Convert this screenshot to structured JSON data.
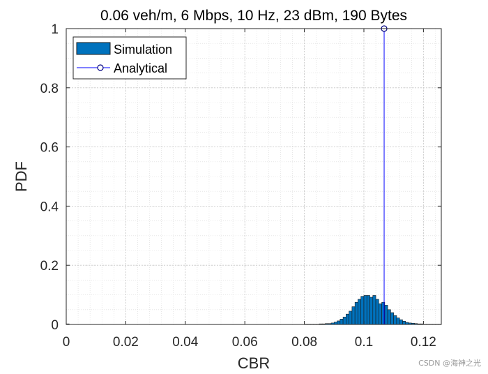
{
  "chart_data": {
    "type": "bar",
    "title": "0.06 veh/m, 6 Mbps, 10 Hz, 23 dBm, 190 Bytes",
    "xlabel": "CBR",
    "ylabel": "PDF",
    "xlim": [
      0,
      0.126
    ],
    "ylim": [
      0,
      1
    ],
    "xticks": [
      0,
      0.02,
      0.04,
      0.06,
      0.08,
      0.1,
      0.12
    ],
    "xtick_labels": [
      "0",
      "0.02",
      "0.04",
      "0.06",
      "0.08",
      "0.1",
      "0.12"
    ],
    "yticks": [
      0,
      0.2,
      0.4,
      0.6,
      0.8,
      1
    ],
    "ytick_labels": [
      "0",
      "0.2",
      "0.4",
      "0.6",
      "0.8",
      "1"
    ],
    "grid": true,
    "minor_grid": true,
    "legend_position": "top-left",
    "series": [
      {
        "name": "Simulation",
        "kind": "histogram",
        "color": "#0072BD",
        "bin_width": 0.001,
        "x": [
          0.0005,
          0.0805,
          0.0815,
          0.0825,
          0.0835,
          0.0845,
          0.0855,
          0.0865,
          0.0875,
          0.0885,
          0.0895,
          0.0905,
          0.0915,
          0.0925,
          0.0935,
          0.0945,
          0.0955,
          0.0965,
          0.0975,
          0.0985,
          0.0995,
          0.1005,
          0.1015,
          0.1025,
          0.1035,
          0.1045,
          0.1055,
          0.1065,
          0.1075,
          0.1085,
          0.1095,
          0.1105,
          0.1115,
          0.1125,
          0.1135,
          0.1145,
          0.1155,
          0.1165,
          0.1175,
          0.1185,
          0.1195,
          0.1205,
          0.1215,
          0.1225,
          0.1235,
          0.1245,
          0.1255
        ],
        "values": [
          0.002,
          0.001,
          0.001,
          0.001,
          0.001,
          0.001,
          0.002,
          0.002,
          0.003,
          0.003,
          0.005,
          0.008,
          0.012,
          0.018,
          0.025,
          0.035,
          0.045,
          0.06,
          0.075,
          0.085,
          0.095,
          0.098,
          0.098,
          0.092,
          0.098,
          0.085,
          0.07,
          0.075,
          0.065,
          0.05,
          0.04,
          0.03,
          0.022,
          0.016,
          0.011,
          0.007,
          0.005,
          0.004,
          0.003,
          0.002,
          0.002,
          0.001,
          0.001,
          0.001,
          0.001,
          0.001,
          0.001
        ]
      },
      {
        "name": "Analytical",
        "kind": "stem",
        "color": "#0000FF",
        "x": [
          0.1068
        ],
        "values": [
          1
        ]
      }
    ]
  },
  "watermark": "CSDN @海神之光"
}
